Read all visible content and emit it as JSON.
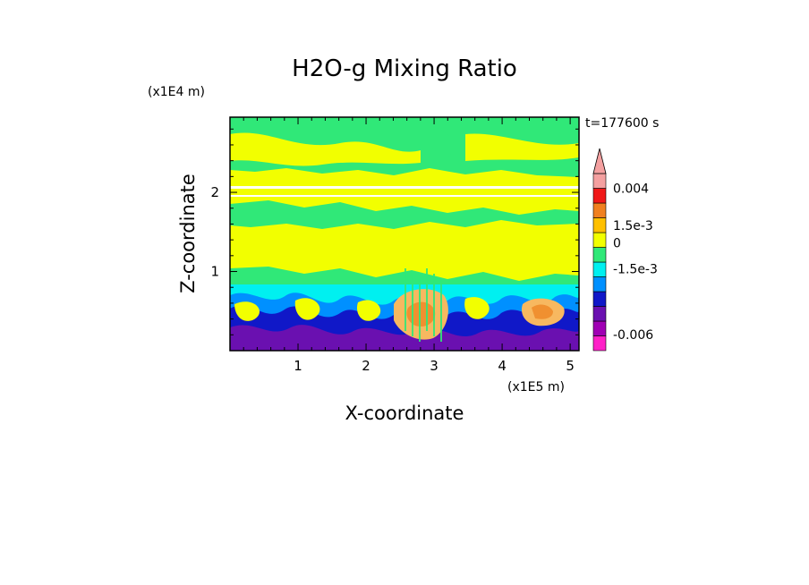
{
  "chart_data": {
    "type": "heatmap",
    "title": "H2O-g Mixing Ratio",
    "xlabel": "X-coordinate",
    "ylabel": "Z-coordinate",
    "x_unit": "(x1E5 m)",
    "y_unit": "(x1E4 m)",
    "time_label": "t=177600 s",
    "x_ticks": [
      "1",
      "2",
      "3",
      "4",
      "5"
    ],
    "y_ticks": [
      "1",
      "2"
    ],
    "xlim": [
      0,
      5.13
    ],
    "ylim": [
      0,
      2.95
    ],
    "colorbar": {
      "levels": [
        {
          "color": "#ff20c8",
          "desc": "lowest"
        },
        {
          "color": "#a000b4",
          "desc": ""
        },
        {
          "color": "#6a10b0",
          "desc": ""
        },
        {
          "color": "#1018c8",
          "desc": ""
        },
        {
          "color": "#0090ff",
          "desc": ""
        },
        {
          "color": "#00f0f0",
          "desc": ""
        },
        {
          "color": "#30e878",
          "desc": ""
        },
        {
          "color": "#f2ff00",
          "desc": ""
        },
        {
          "color": "#ffc000",
          "desc": ""
        },
        {
          "color": "#f08020",
          "desc": ""
        },
        {
          "color": "#f01818",
          "desc": ""
        },
        {
          "color": "#f4a0a0",
          "desc": "highest"
        }
      ],
      "labels": [
        {
          "text": "0.004",
          "level": 11.0
        },
        {
          "text": "1.5e-3",
          "level": 8.5
        },
        {
          "text": "0",
          "level": 7.3
        },
        {
          "text": "-1.5e-3",
          "level": 5.55
        },
        {
          "text": "-0.006",
          "level": 1.1
        }
      ]
    },
    "field_colors": {
      "background": "#f2ff00",
      "green": "#30e878",
      "cyan": "#00f0f0",
      "sky": "#0090ff",
      "blue": "#1018c8",
      "purple": "#6a10b0",
      "orange": "#f7b860",
      "orange_dark": "#f09030",
      "white_line": "#ffffff"
    }
  }
}
